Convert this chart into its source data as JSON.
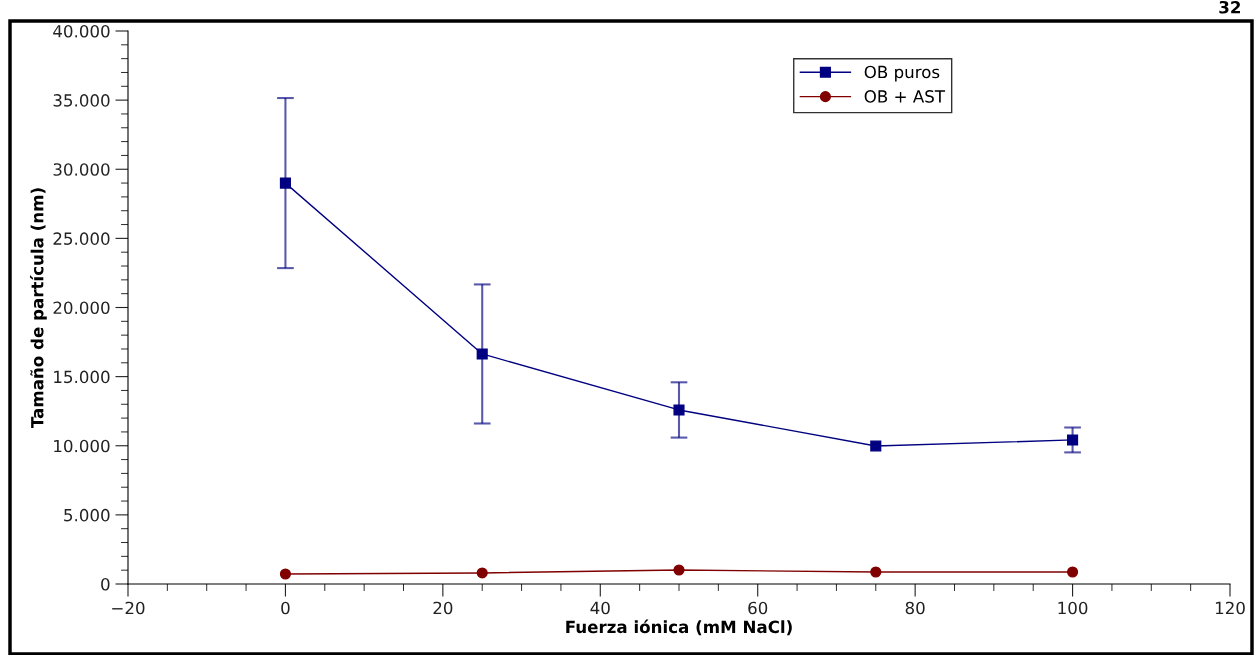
{
  "chart_data": {
    "type": "line",
    "xlabel": "Fuerza iónica (mM NaCl)",
    "ylabel": "Tamaño de partícula (nm)",
    "x": [
      0,
      25,
      50,
      75,
      100
    ],
    "series": [
      {
        "name": "OB puros",
        "color": "#000080",
        "marker": "square",
        "values": [
          29000,
          16640,
          12590,
          9980,
          10420
        ],
        "errors": [
          6150,
          5030,
          2000,
          null,
          900
        ]
      },
      {
        "name": "OB + AST",
        "color": "#800000",
        "marker": "circle",
        "values": [
          720,
          800,
          1010,
          870,
          870
        ]
      }
    ],
    "xlim": [
      -20,
      120
    ],
    "xticks": [
      {
        "value": -20,
        "label": "−20"
      },
      0,
      20,
      40,
      60,
      80,
      100,
      120
    ],
    "ylim": [
      0,
      40000
    ],
    "yticks": [
      0,
      {
        "value": 5000,
        "label": "5.000"
      },
      {
        "value": 10000,
        "label": "10.000"
      },
      {
        "value": 15000,
        "label": "15.000"
      },
      {
        "value": 20000,
        "label": "20.000"
      },
      {
        "value": 25000,
        "label": "25.000"
      },
      {
        "value": 30000,
        "label": "30.000"
      },
      {
        "value": 35000,
        "label": "35.000"
      },
      {
        "value": 40000,
        "label": "40.000"
      }
    ],
    "grid": false,
    "legend": "top right",
    "line_style": "solid",
    "annotations": [
      "32"
    ]
  }
}
